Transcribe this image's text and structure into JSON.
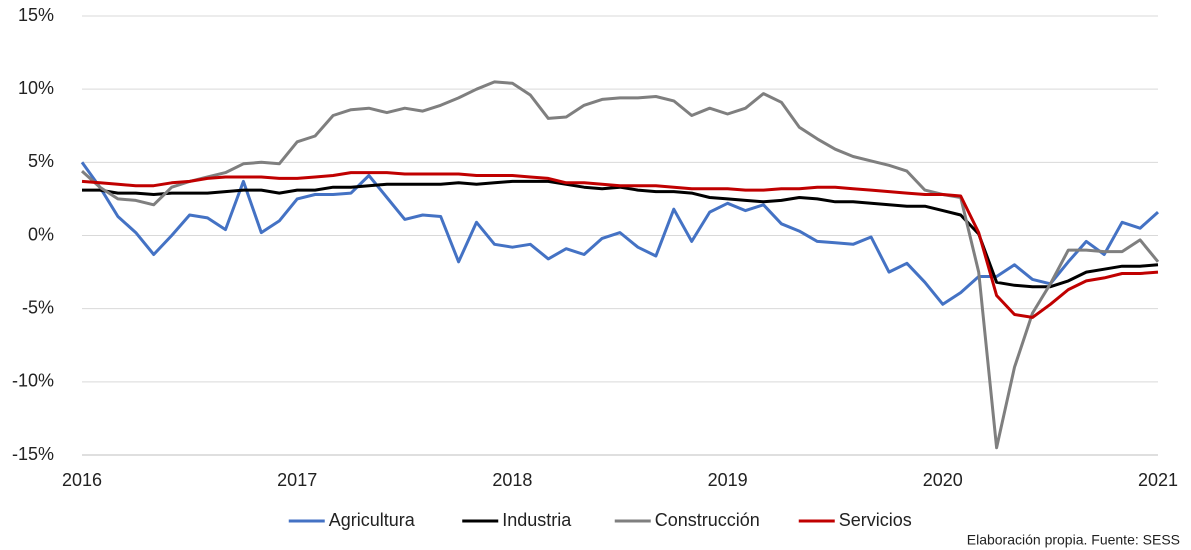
{
  "chart_data": {
    "type": "line",
    "categories": [
      "2016",
      null,
      null,
      null,
      null,
      null,
      null,
      null,
      null,
      null,
      null,
      null,
      "2017",
      null,
      null,
      null,
      null,
      null,
      null,
      null,
      null,
      null,
      null,
      null,
      "2018",
      null,
      null,
      null,
      null,
      null,
      null,
      null,
      null,
      null,
      null,
      null,
      "2019",
      null,
      null,
      null,
      null,
      null,
      null,
      null,
      null,
      null,
      null,
      null,
      "2020",
      null,
      null,
      null,
      null,
      null,
      null,
      null,
      null,
      null,
      null,
      null,
      "2021"
    ],
    "series": [
      {
        "name": "Agricultura",
        "color": "#4472c4",
        "values": [
          5.0,
          3.3,
          1.3,
          0.2,
          -1.3,
          0.0,
          1.4,
          1.2,
          0.4,
          3.7,
          0.2,
          1.0,
          2.5,
          2.8,
          2.8,
          2.9,
          4.1,
          2.6,
          1.1,
          1.4,
          1.3,
          -1.8,
          0.9,
          -0.6,
          -0.8,
          -0.6,
          -1.6,
          -0.9,
          -1.3,
          -0.2,
          0.2,
          -0.8,
          -1.4,
          1.8,
          -0.4,
          1.6,
          2.2,
          1.7,
          2.1,
          0.8,
          0.3,
          -0.4,
          -0.5,
          -0.6,
          -0.1,
          -2.5,
          -1.9,
          -3.2,
          -4.7,
          -3.9,
          -2.8,
          -2.8,
          -2.0,
          -3.0,
          -3.3,
          -1.8,
          -0.4,
          -1.3,
          0.9,
          0.5,
          1.6
        ]
      },
      {
        "name": "Industria",
        "color": "#000000",
        "values": [
          3.1,
          3.1,
          2.9,
          2.9,
          2.8,
          2.9,
          2.9,
          2.9,
          3.0,
          3.1,
          3.1,
          2.9,
          3.1,
          3.1,
          3.3,
          3.3,
          3.4,
          3.5,
          3.5,
          3.5,
          3.5,
          3.6,
          3.5,
          3.6,
          3.7,
          3.7,
          3.7,
          3.5,
          3.3,
          3.2,
          3.3,
          3.1,
          3.0,
          3.0,
          2.9,
          2.6,
          2.5,
          2.4,
          2.3,
          2.4,
          2.6,
          2.5,
          2.3,
          2.3,
          2.2,
          2.1,
          2.0,
          2.0,
          1.7,
          1.4,
          0.1,
          -3.2,
          -3.4,
          -3.5,
          -3.5,
          -3.1,
          -2.5,
          -2.3,
          -2.1,
          -2.1,
          -2.0
        ]
      },
      {
        "name": "Construcción",
        "color": "#7f7f7f",
        "values": [
          4.4,
          3.3,
          2.5,
          2.4,
          2.1,
          3.3,
          3.7,
          4.0,
          4.3,
          4.9,
          5.0,
          4.9,
          6.4,
          6.8,
          8.2,
          8.6,
          8.7,
          8.4,
          8.7,
          8.5,
          8.9,
          9.4,
          10.0,
          10.5,
          10.4,
          9.6,
          8.0,
          8.1,
          8.9,
          9.3,
          9.4,
          9.4,
          9.5,
          9.2,
          8.2,
          8.7,
          8.3,
          8.7,
          9.7,
          9.1,
          7.4,
          6.6,
          5.9,
          5.4,
          5.1,
          4.8,
          4.4,
          3.1,
          2.8,
          2.6,
          -2.5,
          -14.5,
          -9.0,
          -5.3,
          -3.3,
          -1.0,
          -1.0,
          -1.1,
          -1.1,
          -0.3,
          -1.8
        ]
      },
      {
        "name": "Servicios",
        "color": "#c00000",
        "values": [
          3.7,
          3.6,
          3.5,
          3.4,
          3.4,
          3.6,
          3.7,
          3.9,
          4.0,
          4.0,
          4.0,
          3.9,
          3.9,
          4.0,
          4.1,
          4.3,
          4.3,
          4.3,
          4.2,
          4.2,
          4.2,
          4.2,
          4.1,
          4.1,
          4.1,
          4.0,
          3.9,
          3.6,
          3.6,
          3.5,
          3.4,
          3.4,
          3.4,
          3.3,
          3.2,
          3.2,
          3.2,
          3.1,
          3.1,
          3.2,
          3.2,
          3.3,
          3.3,
          3.2,
          3.1,
          3.0,
          2.9,
          2.8,
          2.8,
          2.7,
          0.2,
          -4.1,
          -5.4,
          -5.6,
          -4.7,
          -3.7,
          -3.1,
          -2.9,
          -2.6,
          -2.6,
          -2.5
        ]
      }
    ],
    "ylim": [
      -15,
      15
    ],
    "yticks": [
      {
        "value": -15,
        "label": "-15%"
      },
      {
        "value": -10,
        "label": "-10%"
      },
      {
        "value": -5,
        "label": "-5%"
      },
      {
        "value": 0,
        "label": "0%"
      },
      {
        "value": 5,
        "label": "5%"
      },
      {
        "value": 10,
        "label": "10%"
      },
      {
        "value": 15,
        "label": "15%"
      }
    ],
    "grid": true,
    "legend": "bottom",
    "source": "Elaboración propia. Fuente:  SESS"
  }
}
